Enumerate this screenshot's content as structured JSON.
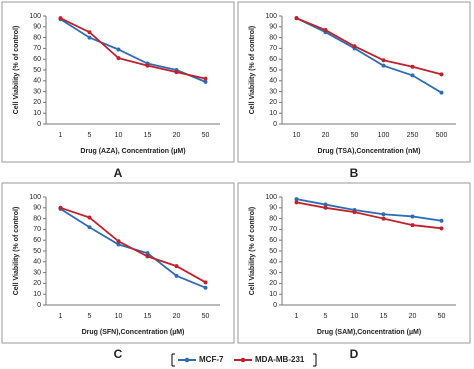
{
  "chart_data": [
    {
      "type": "line",
      "label": "A",
      "xlabel": "Drug (AZA), Concentration (µM)",
      "ylabel": "Cell Viability (% of control)",
      "categories": [
        "1",
        "5",
        "10",
        "15",
        "20",
        "50"
      ],
      "ylim": [
        0,
        100
      ],
      "yticks": [
        0,
        10,
        20,
        30,
        40,
        50,
        60,
        70,
        80,
        90,
        100
      ],
      "series": [
        {
          "name": "MCF-7",
          "color": "#2e6db4",
          "values": [
            97,
            80,
            69,
            56,
            50,
            39
          ]
        },
        {
          "name": "MDA-MB-231",
          "color": "#c0222c",
          "values": [
            98,
            85,
            61,
            54,
            48,
            42
          ]
        }
      ]
    },
    {
      "type": "line",
      "label": "B",
      "xlabel": "Drug (TSA),Concentration (nM)",
      "ylabel": "Cell Viability (% of control)",
      "categories": [
        "10",
        "20",
        "50",
        "100",
        "250",
        "500"
      ],
      "ylim": [
        0,
        100
      ],
      "yticks": [
        0,
        10,
        20,
        30,
        40,
        50,
        60,
        70,
        80,
        90,
        100
      ],
      "series": [
        {
          "name": "MCF-7",
          "color": "#2e6db4",
          "values": [
            98,
            85,
            70,
            54,
            45,
            29
          ]
        },
        {
          "name": "MDA-MB-231",
          "color": "#c0222c",
          "values": [
            98,
            87,
            72,
            59,
            53,
            46
          ]
        }
      ]
    },
    {
      "type": "line",
      "label": "C",
      "xlabel": "Drug (SFN),Concentration (µM)",
      "ylabel": "Cell Viability (% of control)",
      "categories": [
        "1",
        "5",
        "10",
        "15",
        "20",
        "50"
      ],
      "ylim": [
        0,
        100
      ],
      "yticks": [
        0,
        10,
        20,
        30,
        40,
        50,
        60,
        70,
        80,
        90,
        100
      ],
      "series": [
        {
          "name": "MCF-7",
          "color": "#2e6db4",
          "values": [
            89,
            72,
            56,
            48,
            27,
            16
          ]
        },
        {
          "name": "MDA-MB-231",
          "color": "#c0222c",
          "values": [
            90,
            81,
            59,
            45,
            36,
            21
          ]
        }
      ]
    },
    {
      "type": "line",
      "label": "D",
      "xlabel": "Drug (SAM),Concentration (µM)",
      "ylabel": "Cell Viability (% of control)",
      "categories": [
        "1",
        "5",
        "10",
        "15",
        "20",
        "50"
      ],
      "ylim": [
        0,
        100
      ],
      "yticks": [
        0,
        10,
        20,
        30,
        40,
        50,
        60,
        70,
        80,
        90,
        100
      ],
      "series": [
        {
          "name": "MCF-7",
          "color": "#2e6db4",
          "values": [
            98,
            93,
            88,
            84,
            82,
            78
          ]
        },
        {
          "name": "MDA-MB-231",
          "color": "#c0222c",
          "values": [
            95,
            90,
            86,
            80,
            74,
            71
          ]
        }
      ]
    }
  ]
}
